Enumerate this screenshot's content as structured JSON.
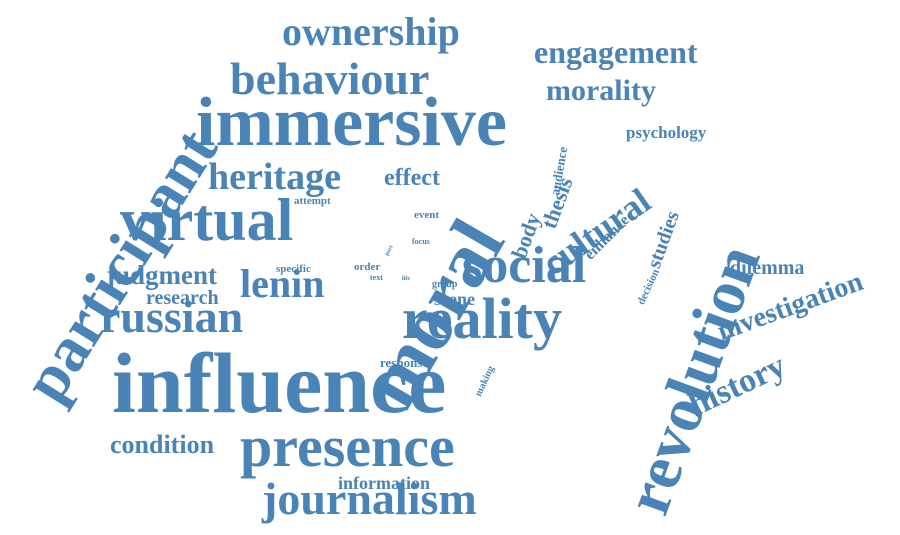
{
  "color": "#4a83b5",
  "words": [
    {
      "key": "influence",
      "text": "influence"
    },
    {
      "key": "moral",
      "text": "moral"
    },
    {
      "key": "immersive",
      "text": "immersive"
    },
    {
      "key": "participant",
      "text": "participant"
    },
    {
      "key": "revolution",
      "text": "revolution"
    },
    {
      "key": "virtual",
      "text": "virtual"
    },
    {
      "key": "presence",
      "text": "presence"
    },
    {
      "key": "reality",
      "text": "reality"
    },
    {
      "key": "social",
      "text": "social"
    },
    {
      "key": "behaviour",
      "text": "behaviour"
    },
    {
      "key": "journalism",
      "text": "journalism"
    },
    {
      "key": "russian",
      "text": "russian"
    },
    {
      "key": "ownership",
      "text": "ownership"
    },
    {
      "key": "engagement",
      "text": "engagement"
    },
    {
      "key": "heritage",
      "text": "heritage"
    },
    {
      "key": "lenin",
      "text": "lenin"
    },
    {
      "key": "cultural",
      "text": "cultural"
    },
    {
      "key": "morality",
      "text": "morality"
    },
    {
      "key": "judgment",
      "text": "judgment"
    },
    {
      "key": "history",
      "text": "history"
    },
    {
      "key": "investigation",
      "text": "investigation"
    },
    {
      "key": "condition",
      "text": "condition"
    },
    {
      "key": "effect",
      "text": "effect"
    },
    {
      "key": "research",
      "text": "research"
    },
    {
      "key": "information",
      "text": "information"
    },
    {
      "key": "dilemma",
      "text": "dilemma"
    },
    {
      "key": "psychology",
      "text": "psychology"
    },
    {
      "key": "body",
      "text": "body"
    },
    {
      "key": "thesis",
      "text": "thesis"
    },
    {
      "key": "studies",
      "text": "studies"
    },
    {
      "key": "scene",
      "text": "scene"
    },
    {
      "key": "enhance",
      "text": "enhance"
    },
    {
      "key": "audience",
      "text": "audience"
    },
    {
      "key": "response",
      "text": "response"
    },
    {
      "key": "attempt",
      "text": "attempt"
    },
    {
      "key": "event",
      "text": "event"
    },
    {
      "key": "order",
      "text": "order"
    },
    {
      "key": "specific",
      "text": "specific"
    },
    {
      "key": "group",
      "text": "group"
    },
    {
      "key": "decision",
      "text": "decision"
    },
    {
      "key": "making",
      "text": "making"
    },
    {
      "key": "focus",
      "text": "focus"
    },
    {
      "key": "text",
      "text": "text"
    },
    {
      "key": "life",
      "text": "life"
    },
    {
      "key": "part",
      "text": "part"
    }
  ]
}
